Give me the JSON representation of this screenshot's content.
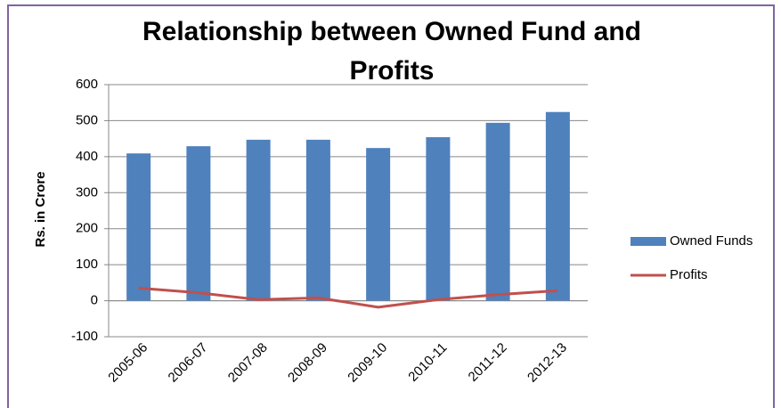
{
  "chart_data": {
    "type": "bar",
    "title": "Relationship between Owned Fund and Profits",
    "y_label": "Rs. in Crore",
    "categories": [
      "2005-06",
      "2006-07",
      "2007-08",
      "2008-09",
      "2009-10",
      "2010-11",
      "2011-12",
      "2012-13"
    ],
    "series": [
      {
        "name": "Owned Funds",
        "type": "bar",
        "color": "#4f81bd",
        "values": [
          409,
          429,
          447,
          447,
          424,
          454,
          494,
          524
        ]
      },
      {
        "name": "Profits",
        "type": "line",
        "color": "#c0504d",
        "values": [
          35,
          22,
          3,
          8,
          -18,
          3,
          17,
          28
        ]
      }
    ],
    "ylim": [
      -100,
      600
    ],
    "yticks": [
      -100,
      0,
      100,
      200,
      300,
      400,
      500,
      600
    ],
    "grid": true,
    "legend": "right"
  }
}
